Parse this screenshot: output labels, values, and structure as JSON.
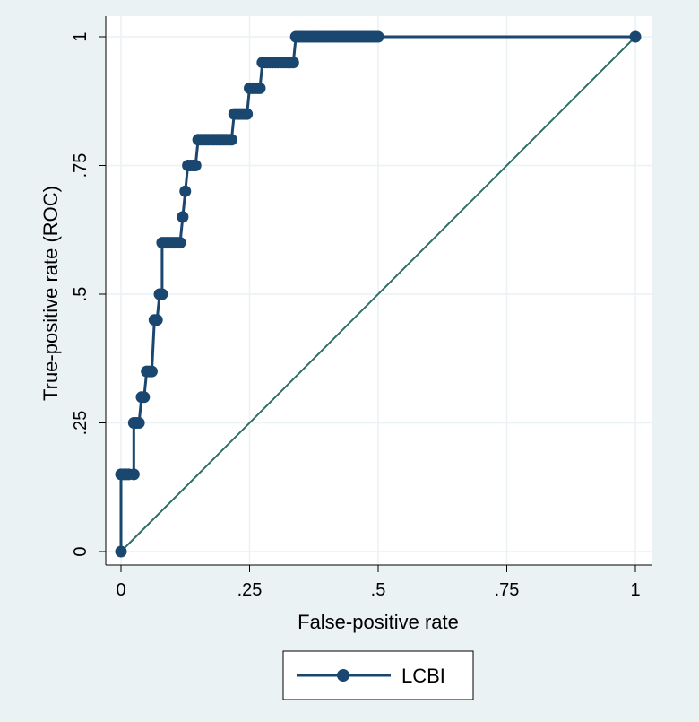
{
  "chart_data": {
    "type": "line",
    "title": "",
    "xlabel": "False-positive rate",
    "ylabel": "True-positive rate (ROC)",
    "xlim": [
      0,
      1
    ],
    "ylim": [
      0,
      1
    ],
    "x_ticks": [
      0,
      0.25,
      0.5,
      0.75,
      1
    ],
    "x_tick_labels": [
      "0",
      ".25",
      ".5",
      ".75",
      "1"
    ],
    "y_ticks": [
      0,
      0.25,
      0.5,
      0.75,
      1
    ],
    "y_tick_labels": [
      "0",
      ".25",
      ".5",
      ".75",
      "1"
    ],
    "grid": true,
    "legend_position": "bottom",
    "colors": {
      "background": "#eaf2f3",
      "plot_area": "#ffffff",
      "grid": "#eaf2f3",
      "series": "#1a476f",
      "reference": "#2d6d66"
    },
    "series": [
      {
        "name": "LCBI",
        "marker": "circle",
        "x": [
          0,
          0,
          0.005,
          0.01,
          0.015,
          0.025,
          0.025,
          0.03,
          0.035,
          0.04,
          0.045,
          0.05,
          0.055,
          0.06,
          0.065,
          0.07,
          0.075,
          0.08,
          0.08,
          0.085,
          0.09,
          0.095,
          0.1,
          0.105,
          0.11,
          0.115,
          0.12,
          0.125,
          0.13,
          0.135,
          0.14,
          0.145,
          0.15,
          0.155,
          0.16,
          0.165,
          0.17,
          0.175,
          0.18,
          0.185,
          0.19,
          0.195,
          0.2,
          0.205,
          0.21,
          0.215,
          0.22,
          0.225,
          0.23,
          0.235,
          0.24,
          0.245,
          0.25,
          0.255,
          0.26,
          0.265,
          0.27,
          0.275,
          0.28,
          0.285,
          0.29,
          0.295,
          0.3,
          0.305,
          0.31,
          0.315,
          0.32,
          0.325,
          0.33,
          0.335,
          0.34,
          0.345,
          0.35,
          0.355,
          0.36,
          0.365,
          0.37,
          0.375,
          0.38,
          0.385,
          0.39,
          0.395,
          0.4,
          0.405,
          0.41,
          0.415,
          0.42,
          0.425,
          0.43,
          0.435,
          0.44,
          0.445,
          0.45,
          0.455,
          0.46,
          0.465,
          0.47,
          0.475,
          0.48,
          0.485,
          0.49,
          0.495,
          0.5,
          1
        ],
        "y": [
          0,
          0.15,
          0.15,
          0.15,
          0.15,
          0.15,
          0.25,
          0.25,
          0.25,
          0.3,
          0.3,
          0.35,
          0.35,
          0.35,
          0.45,
          0.45,
          0.5,
          0.5,
          0.6,
          0.6,
          0.6,
          0.6,
          0.6,
          0.6,
          0.6,
          0.6,
          0.65,
          0.7,
          0.75,
          0.75,
          0.75,
          0.75,
          0.8,
          0.8,
          0.8,
          0.8,
          0.8,
          0.8,
          0.8,
          0.8,
          0.8,
          0.8,
          0.8,
          0.8,
          0.8,
          0.8,
          0.85,
          0.85,
          0.85,
          0.85,
          0.85,
          0.85,
          0.9,
          0.9,
          0.9,
          0.9,
          0.9,
          0.95,
          0.95,
          0.95,
          0.95,
          0.95,
          0.95,
          0.95,
          0.95,
          0.95,
          0.95,
          0.95,
          0.95,
          0.95,
          1,
          1,
          1,
          1,
          1,
          1,
          1,
          1,
          1,
          1,
          1,
          1,
          1,
          1,
          1,
          1,
          1,
          1,
          1,
          1,
          1,
          1,
          1,
          1,
          1,
          1,
          1,
          1,
          1,
          1,
          1,
          1,
          1,
          1
        ]
      },
      {
        "role": "reference",
        "x": [
          0,
          1
        ],
        "y": [
          0,
          1
        ]
      }
    ]
  }
}
